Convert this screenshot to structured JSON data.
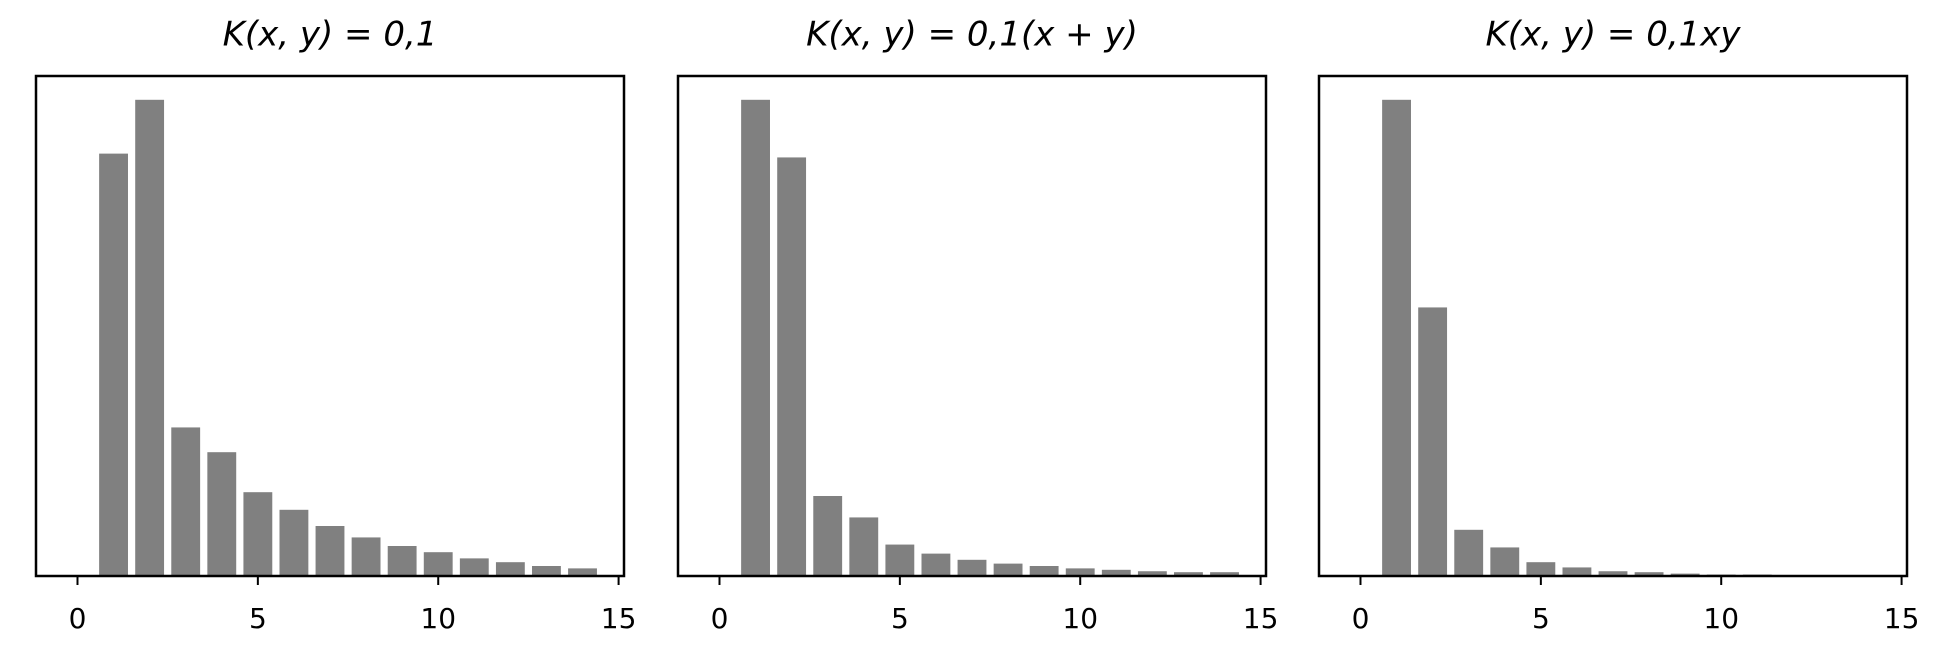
{
  "chart_data": [
    {
      "type": "bar",
      "title": "K(x, y) = 0,1",
      "color": "#808080",
      "x": [
        1,
        2,
        3,
        4,
        5,
        6,
        7,
        8,
        9,
        10,
        11,
        12,
        13,
        14
      ],
      "values": [
        0.887,
        1,
        0.312,
        0.26,
        0.176,
        0.139,
        0.105,
        0.081,
        0.063,
        0.05,
        0.037,
        0.029,
        0.021,
        0.016
      ],
      "xlim": [
        -1.15,
        15.15
      ],
      "xticks": [
        0,
        5,
        10,
        15
      ],
      "ylim": [
        0,
        1.05
      ]
    },
    {
      "type": "bar",
      "title": "K(x, y) = 0,1(x + y)",
      "color": "#808080",
      "x": [
        1,
        2,
        3,
        4,
        5,
        6,
        7,
        8,
        9,
        10,
        11,
        12,
        13,
        14
      ],
      "values": [
        1,
        0.879,
        0.168,
        0.123,
        0.066,
        0.047,
        0.034,
        0.026,
        0.021,
        0.016,
        0.013,
        0.01,
        0.008,
        0.008
      ],
      "xlim": [
        -1.15,
        15.15
      ],
      "xticks": [
        0,
        5,
        10,
        15
      ],
      "ylim": [
        0,
        1.05
      ]
    },
    {
      "type": "bar",
      "title": "K(x, y) = 0,1xy",
      "color": "#808080",
      "x": [
        1,
        2,
        3,
        4,
        5,
        6,
        7,
        8,
        9,
        10,
        11,
        12
      ],
      "values": [
        1,
        0.564,
        0.097,
        0.06,
        0.029,
        0.018,
        0.01,
        0.008,
        0.005,
        0.003,
        0.003,
        0.001
      ],
      "xlim": [
        -1.15,
        15.15
      ],
      "xticks": [
        0,
        5,
        10,
        15
      ],
      "ylim": [
        0,
        1.05
      ]
    }
  ]
}
